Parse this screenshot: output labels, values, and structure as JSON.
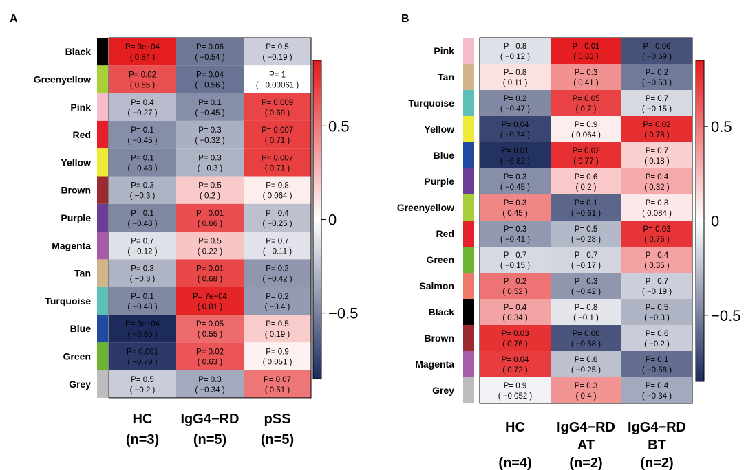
{
  "chart_data": [
    {
      "type": "heatmap",
      "panel_label": "A",
      "rows": [
        "Black",
        "Greenyellow",
        "Pink",
        "Red",
        "Yellow",
        "Brown",
        "Purple",
        "Magenta",
        "Tan",
        "Turquoise",
        "Blue",
        "Green",
        "Grey"
      ],
      "row_colors": [
        "#000000",
        "#a6cf3a",
        "#f5bdcb",
        "#e5202a",
        "#eeea35",
        "#9c2b31",
        "#6a3e97",
        "#a85ba7",
        "#d3b58b",
        "#5cc0b8",
        "#2149a2",
        "#6bb330",
        "#bdbdbd"
      ],
      "columns": [
        {
          "name": "HC",
          "n": "(n=3)"
        },
        {
          "name": "IgG4−RD",
          "n": "(n=5)"
        },
        {
          "name": "pSS",
          "n": "(n=5)"
        }
      ],
      "p_values": [
        [
          "P= 3e−04",
          "P= 0.06",
          "P= 0.5"
        ],
        [
          "P= 0.02",
          "P= 0.04",
          "P= 1"
        ],
        [
          "P= 0.4",
          "P= 0.1",
          "P= 0.009"
        ],
        [
          "P= 0.1",
          "P= 0.3",
          "P= 0.007"
        ],
        [
          "P= 0.1",
          "P= 0.3",
          "P= 0.007"
        ],
        [
          "P= 0.3",
          "P= 0.5",
          "P= 0.8"
        ],
        [
          "P= 0.1",
          "P= 0.01",
          "P= 0.4"
        ],
        [
          "P= 0.7",
          "P= 0.5",
          "P= 0.7"
        ],
        [
          "P= 0.3",
          "P= 0.01",
          "P= 0.2"
        ],
        [
          "P= 0.1",
          "P= 7e−04",
          "P= 0.2"
        ],
        [
          "P= 3e−04",
          "P= 0.05",
          "P= 0.5"
        ],
        [
          "P= 0.001",
          "P= 0.02",
          "P= 0.9"
        ],
        [
          "P= 0.5",
          "P= 0.3",
          "P= 0.07"
        ]
      ],
      "correlations": [
        [
          0.84,
          -0.54,
          -0.19
        ],
        [
          0.65,
          -0.56,
          -0.00061
        ],
        [
          -0.27,
          -0.45,
          0.69
        ],
        [
          -0.45,
          -0.32,
          0.71
        ],
        [
          -0.48,
          -0.3,
          0.71
        ],
        [
          -0.3,
          0.2,
          0.064
        ],
        [
          -0.48,
          0.66,
          -0.25
        ],
        [
          -0.12,
          0.22,
          -0.11
        ],
        [
          -0.3,
          0.68,
          -0.42
        ],
        [
          -0.48,
          0.81,
          -0.4
        ],
        [
          -0.85,
          0.55,
          0.19
        ],
        [
          -0.79,
          0.63,
          0.051
        ],
        [
          -0.2,
          -0.34,
          0.51
        ]
      ],
      "correlation_labels": [
        [
          "( 0.84 )",
          "( −0.54 )",
          "( −0.19 )"
        ],
        [
          "( 0.65 )",
          "( −0.56 )",
          "( −0.00061 )"
        ],
        [
          "( −0.27 )",
          "( −0.45 )",
          "( 0.69 )"
        ],
        [
          "( −0.45 )",
          "( −0.32 )",
          "( 0.71 )"
        ],
        [
          "( −0.48 )",
          "( −0.3 )",
          "( 0.71 )"
        ],
        [
          "( −0.3 )",
          "( 0.2 )",
          "( 0.064 )"
        ],
        [
          "( −0.48 )",
          "( 0.66 )",
          "( −0.25 )"
        ],
        [
          "( −0.12 )",
          "( 0.22 )",
          "( −0.11 )"
        ],
        [
          "( −0.3 )",
          "( 0.68 )",
          "( −0.42 )"
        ],
        [
          "( −0.48 )",
          "( 0.81 )",
          "( −0.4 )"
        ],
        [
          "( −0.85 )",
          "( 0.55 )",
          "( 0.19 )"
        ],
        [
          "( −0.79 )",
          "( 0.63 )",
          "( 0.051 )"
        ],
        [
          "( −0.2 )",
          "( −0.34 )",
          "( 0.51 )"
        ]
      ],
      "colorbar": {
        "range": [
          -0.85,
          0.85
        ],
        "ticks": [
          0.5,
          0,
          -0.5
        ],
        "tick_labels": [
          "0.5",
          "0",
          "−0.5"
        ]
      }
    },
    {
      "type": "heatmap",
      "panel_label": "B",
      "rows": [
        "Pink",
        "Tan",
        "Turquoise",
        "Yellow",
        "Blue",
        "Purple",
        "Greenyellow",
        "Red",
        "Green",
        "Salmon",
        "Black",
        "Brown",
        "Magenta",
        "Grey"
      ],
      "row_colors": [
        "#f5bdcb",
        "#d3b58b",
        "#5cc0b8",
        "#eeea35",
        "#2149a2",
        "#6a3e97",
        "#a6cf3a",
        "#e5202a",
        "#6bb330",
        "#ef7a6b",
        "#000000",
        "#9c2b31",
        "#a85ba7",
        "#bdbdbd"
      ],
      "columns": [
        {
          "name": "HC",
          "name2": "",
          "n": "(n=4)"
        },
        {
          "name": "IgG4−RD",
          "name2": "AT",
          "n": "(n=2)"
        },
        {
          "name": "IgG4−RD",
          "name2": "BT",
          "n": "(n=2)"
        }
      ],
      "p_values": [
        [
          "P= 0.8",
          "P= 0.01",
          "P= 0.06"
        ],
        [
          "P= 0.8",
          "P= 0.3",
          "P= 0.2"
        ],
        [
          "P= 0.2",
          "P= 0.05",
          "P= 0.7"
        ],
        [
          "P= 0.04",
          "P= 0.9",
          "P= 0.02"
        ],
        [
          "P= 0.01",
          "P= 0.02",
          "P= 0.7"
        ],
        [
          "P= 0.3",
          "P= 0.6",
          "P= 0.4"
        ],
        [
          "P= 0.3",
          "P= 0.1",
          "P= 0.8"
        ],
        [
          "P= 0.3",
          "P= 0.5",
          "P= 0.03"
        ],
        [
          "P= 0.7",
          "P= 0.7",
          "P= 0.4"
        ],
        [
          "P= 0.2",
          "P= 0.3",
          "P= 0.7"
        ],
        [
          "P= 0.4",
          "P= 0.8",
          "P= 0.5"
        ],
        [
          "P= 0.03",
          "P= 0.06",
          "P= 0.6"
        ],
        [
          "P= 0.04",
          "P= 0.6",
          "P= 0.1"
        ],
        [
          "P= 0.9",
          "P= 0.3",
          "P= 0.4"
        ]
      ],
      "correlations": [
        [
          -0.12,
          0.83,
          -0.69
        ],
        [
          0.11,
          0.41,
          -0.53
        ],
        [
          -0.47,
          0.7,
          -0.15
        ],
        [
          -0.74,
          0.064,
          0.78
        ],
        [
          -0.82,
          0.77,
          0.18
        ],
        [
          -0.45,
          0.2,
          0.32
        ],
        [
          0.45,
          -0.61,
          0.084
        ],
        [
          -0.41,
          -0.28,
          0.75
        ],
        [
          -0.15,
          -0.17,
          0.35
        ],
        [
          0.52,
          -0.42,
          -0.19
        ],
        [
          0.34,
          -0.1,
          -0.3
        ],
        [
          0.76,
          -0.68,
          -0.2
        ],
        [
          0.72,
          -0.25,
          -0.58
        ],
        [
          -0.052,
          0.4,
          -0.34
        ]
      ],
      "correlation_labels": [
        [
          "( −0.12 )",
          "( 0.83 )",
          "( −0.69 )"
        ],
        [
          "( 0.11 )",
          "( 0.41 )",
          "( −0.53 )"
        ],
        [
          "( −0.47 )",
          "( 0.7 )",
          "( −0.15 )"
        ],
        [
          "( −0.74 )",
          "( 0.064 )",
          "( 0.78 )"
        ],
        [
          "( −0.82 )",
          "( 0.77 )",
          "( 0.18 )"
        ],
        [
          "( −0.45 )",
          "( 0.2 )",
          "( 0.32 )"
        ],
        [
          "( 0.45 )",
          "( −0.61 )",
          "( 0.084 )"
        ],
        [
          "( −0.41 )",
          "( −0.28 )",
          "( 0.75 )"
        ],
        [
          "( −0.15 )",
          "( −0.17 )",
          "( 0.35 )"
        ],
        [
          "( 0.52 )",
          "( −0.42 )",
          "( −0.19 )"
        ],
        [
          "( 0.34 )",
          "( −0.1 )",
          "( −0.3 )"
        ],
        [
          "( 0.76 )",
          "( −0.68 )",
          "( −0.2 )"
        ],
        [
          "( 0.72 )",
          "( −0.25 )",
          "( −0.58 )"
        ],
        [
          "( −0.052 )",
          "( 0.4 )",
          "( −0.34 )"
        ]
      ],
      "colorbar": {
        "range": [
          -0.85,
          0.85
        ],
        "ticks": [
          0.5,
          0,
          -0.5
        ],
        "tick_labels": [
          "0.5",
          "0",
          "−0.5"
        ]
      }
    }
  ],
  "palette": {
    "low": "#1c2a5c",
    "mid": "#ffffff",
    "high": "#e41a1c",
    "text": "#000000"
  }
}
